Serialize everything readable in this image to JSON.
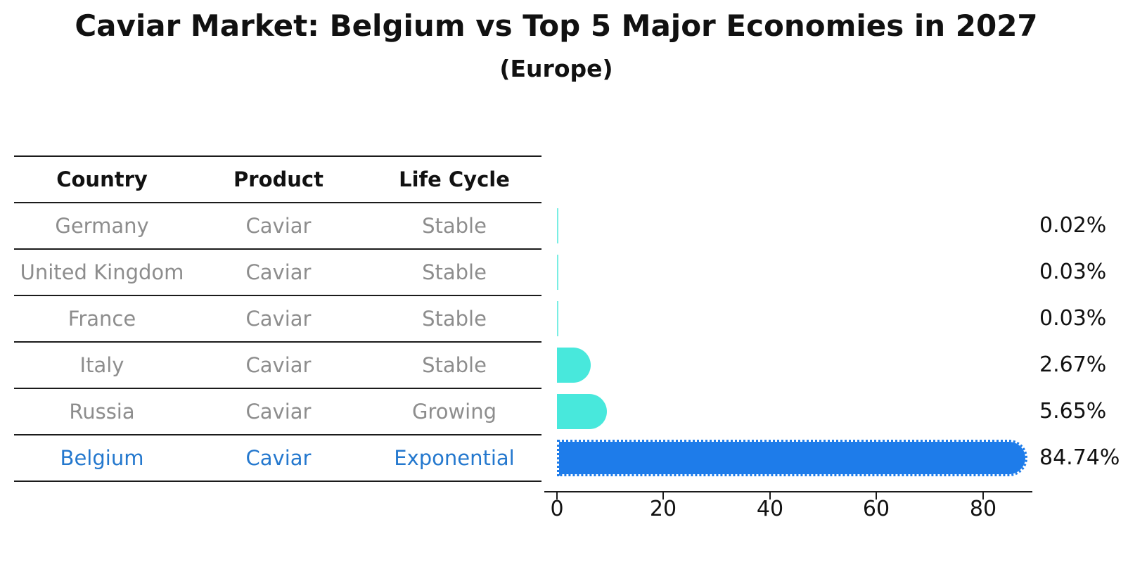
{
  "title": "Caviar Market: Belgium vs Top 5 Major Economies in 2027",
  "subtitle": "(Europe)",
  "table": {
    "headers": [
      "Country",
      "Product",
      "Life Cycle"
    ],
    "rows": [
      {
        "country": "Germany",
        "product": "Caviar",
        "life_cycle": "Stable"
      },
      {
        "country": "United Kingdom",
        "product": "Caviar",
        "life_cycle": "Stable"
      },
      {
        "country": "France",
        "product": "Caviar",
        "life_cycle": "Stable"
      },
      {
        "country": "Italy",
        "product": "Caviar",
        "life_cycle": "Stable"
      },
      {
        "country": "Russia",
        "product": "Caviar",
        "life_cycle": "Growing"
      },
      {
        "country": "Belgium",
        "product": "Caviar",
        "life_cycle": "Exponential"
      }
    ]
  },
  "chart_data": {
    "type": "bar",
    "orientation": "horizontal",
    "categories": [
      "Germany",
      "United Kingdom",
      "France",
      "Italy",
      "Russia",
      "Belgium"
    ],
    "values": [
      0.02,
      0.03,
      0.03,
      2.67,
      5.65,
      84.74
    ],
    "value_labels": [
      "0.02%",
      "0.03%",
      "0.03%",
      "2.67%",
      "5.65%",
      "84.74%"
    ],
    "x_ticks": [
      "0",
      "20",
      "40",
      "60",
      "80"
    ],
    "xlim": [
      -2.5,
      89
    ],
    "grid": false,
    "legend": false,
    "highlight_index": 5,
    "colors": {
      "bar_default": "#48e8dc",
      "bar_thin": "#79eee4",
      "bar_highlight": "#1e7cea",
      "highlight_text": "#2478ce",
      "text": "#111111",
      "muted_text": "#8d8d8d",
      "line": "#1b1b1b"
    }
  }
}
